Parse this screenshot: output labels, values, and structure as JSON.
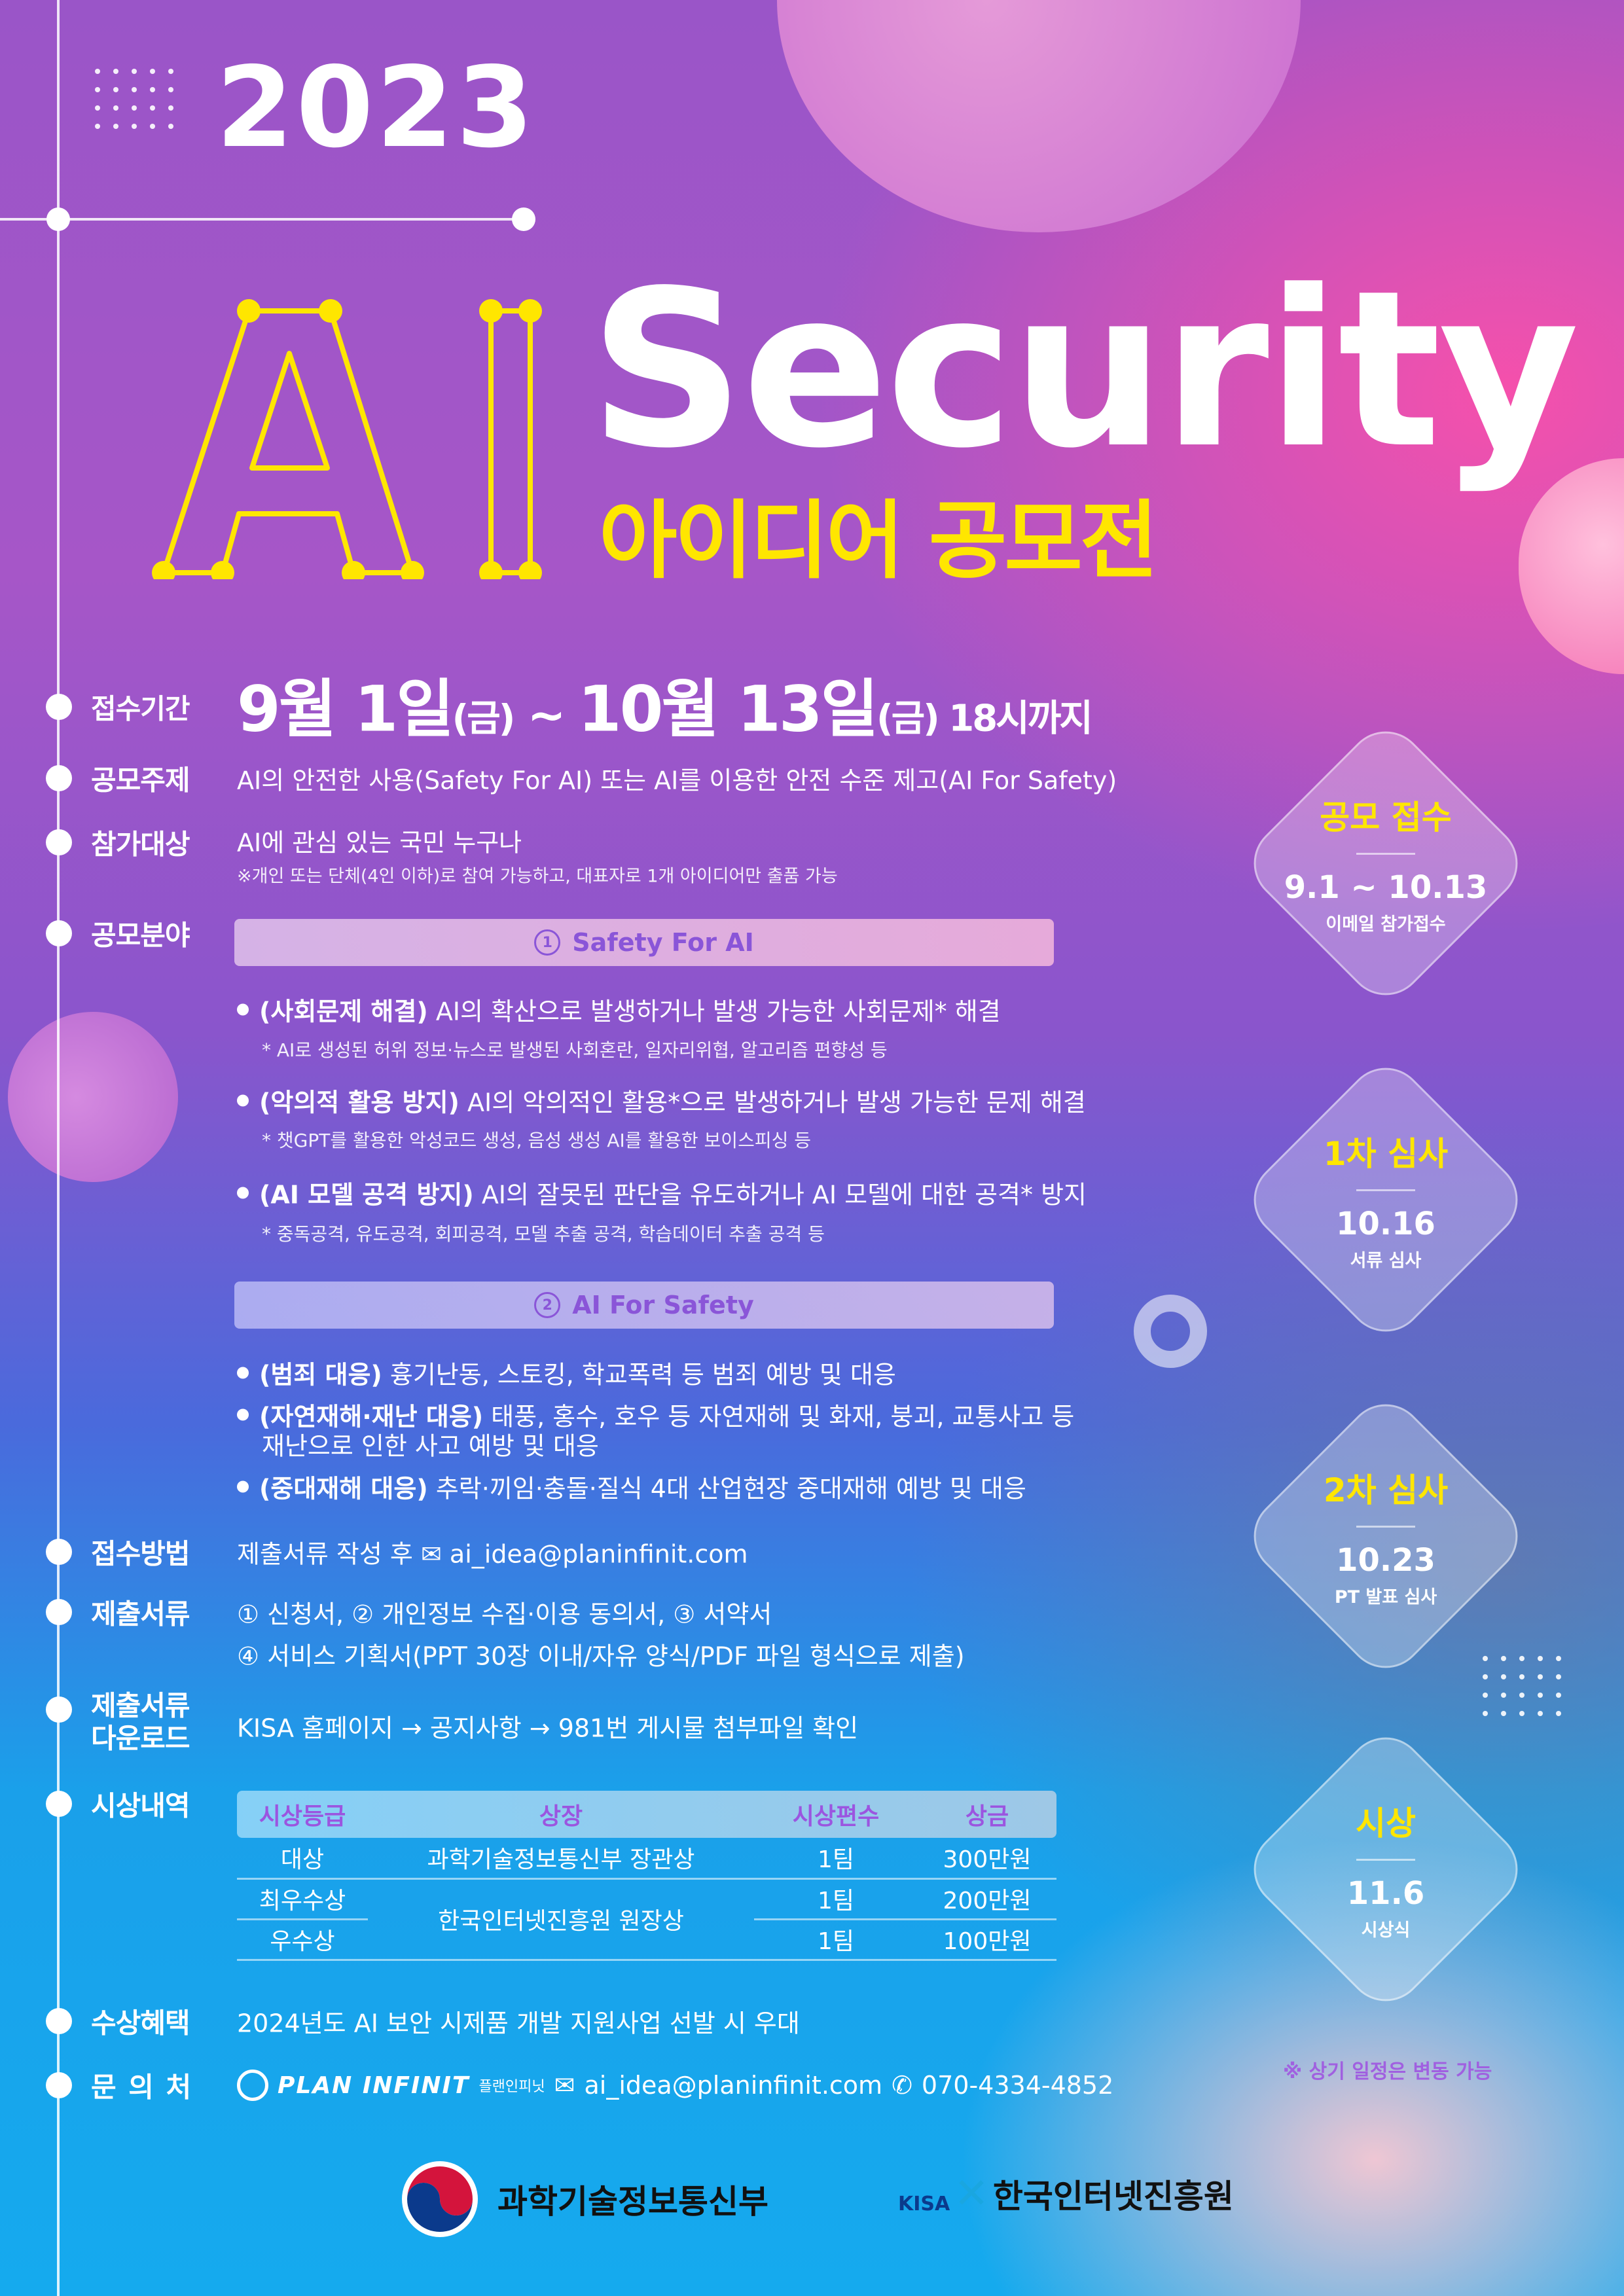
{
  "header": {
    "year": "2023",
    "title_ai": "AI",
    "title_security": "Security",
    "subtitle": "아이디어 공모전"
  },
  "rows": {
    "period": {
      "label": "접수기간",
      "m1": "9월 1일",
      "d1": "(금)",
      "sep": " ~ ",
      "m2": "10월 13일",
      "d2": "(금)",
      "until": " 18시까지"
    },
    "theme": {
      "label": "공모주제",
      "text": "AI의 안전한 사용(Safety For AI) 또는 AI를 이용한 안전 수준 제고(AI For Safety)"
    },
    "target": {
      "label": "참가대상",
      "text": "AI에 관심 있는 국민 누구나",
      "note": "※개인 또는 단체(4인 이하)로 참여 가능하고, 대표자로 1개 아이디어만 출품 가능"
    },
    "field": {
      "label": "공모분야",
      "sec1": {
        "num": "1",
        "title": "Safety For AI",
        "items": [
          {
            "bold": "(사회문제 해결)",
            "text": " AI의 확산으로 발생하거나 발생 가능한 사회문제* 해결",
            "note": "* AI로 생성된 허위 정보·뉴스로 발생된 사회혼란, 일자리위협, 알고리즘 편향성 등"
          },
          {
            "bold": "(악의적 활용 방지)",
            "text": " AI의 악의적인 활용*으로 발생하거나 발생 가능한 문제 해결",
            "note": "* 챗GPT를 활용한 악성코드 생성, 음성 생성 AI를 활용한 보이스피싱 등"
          },
          {
            "bold": "(AI 모델 공격 방지)",
            "text": " AI의 잘못된 판단을 유도하거나 AI 모델에 대한 공격* 방지",
            "note": "* 중독공격, 유도공격, 회피공격, 모델 추출 공격, 학습데이터 추출 공격 등"
          }
        ]
      },
      "sec2": {
        "num": "2",
        "title": "AI For Safety",
        "items": [
          {
            "bold": "(범죄 대응)",
            "text": " 흉기난동, 스토킹, 학교폭력 등 범죄 예방 및 대응"
          },
          {
            "bold": "(자연재해·재난 대응)",
            "text": " 태풍, 홍수, 호우 등 자연재해 및 화재, 붕괴, 교통사고 등",
            "cont": "재난으로 인한 사고 예방 및 대응"
          },
          {
            "bold": "(중대재해 대응)",
            "text": " 추락·끼임·충돌·질식 4대 산업현장 중대재해 예방 및 대응"
          }
        ]
      }
    },
    "method": {
      "label": "접수방법",
      "text": "제출서류 작성 후",
      "email": "ai_idea@planinfinit.com"
    },
    "docs": {
      "label": "제출서류",
      "line1": "① 신청서, ② 개인정보 수집·이용 동의서, ③ 서약서",
      "line2": "④ 서비스 기획서(PPT 30장 이내/자유 양식/PDF 파일 형식으로 제출)"
    },
    "download": {
      "label1": "제출서류",
      "label2": "다운로드",
      "text": "KISA 홈페이지 → 공지사항 → 981번 게시물 첨부파일 확인"
    },
    "awards": {
      "label": "시상내역",
      "headers": [
        "시상등급",
        "상장",
        "시상편수",
        "상금"
      ],
      "rows": [
        [
          "대상",
          "과학기술정보통신부 장관상",
          "1팀",
          "300만원"
        ],
        [
          "최우수상",
          "한국인터넷진흥원 원장상",
          "1팀",
          "200만원"
        ],
        [
          "우수상",
          "",
          "1팀",
          "100만원"
        ]
      ]
    },
    "benefit": {
      "label": "수상혜택",
      "text": "2024년도 AI 보안 시제품 개발 지원사업 선발 시 우대"
    },
    "contact": {
      "label": "문 의 처",
      "company": "PLAN INFINIT",
      "company_kr": "플랜인피닛",
      "email": "ai_idea@planinfinit.com",
      "phone": "070-4334-4852"
    }
  },
  "schedule": [
    {
      "title": "공모 접수",
      "date": "9.1 ~ 10.13",
      "desc": "이메일 참가접수"
    },
    {
      "title": "1차 심사",
      "date": "10.16",
      "desc": "서류 심사"
    },
    {
      "title": "2차 심사",
      "date": "10.23",
      "desc": "PT 발표 심사"
    },
    {
      "title": "시상",
      "date": "11.6",
      "desc": "시상식"
    }
  ],
  "schedule_note": "※ 상기 일정은 변동 가능",
  "footer": {
    "ministry": "과학기술정보통신부",
    "kisa_mark": "KISA",
    "kisa": "한국인터넷진흥원"
  },
  "colors": {
    "accent_yellow": "#FFE600",
    "field_purple": "#8A55D8"
  }
}
